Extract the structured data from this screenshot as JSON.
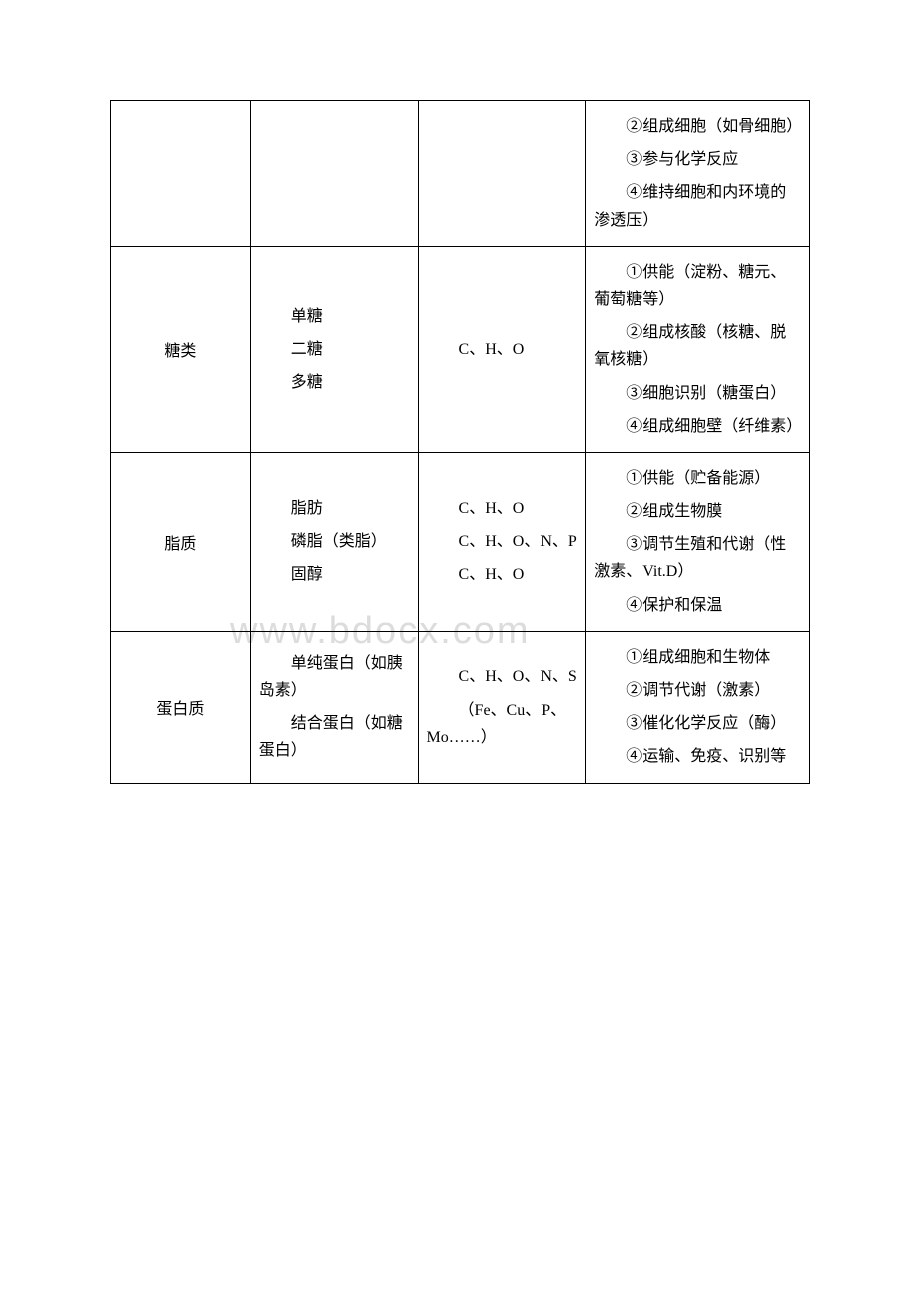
{
  "watermark": "www.bdocx.com",
  "table": {
    "columns": [
      {
        "width": "20%"
      },
      {
        "width": "24%"
      },
      {
        "width": "24%"
      },
      {
        "width": "32%"
      }
    ],
    "border_color": "#000000",
    "font_family": "SimSun",
    "font_size": 16,
    "text_color": "#000000",
    "rows": [
      {
        "col1": "",
        "col2": [],
        "col3": [],
        "col4": [
          "②组成细胞（如骨细胞）",
          "③参与化学反应",
          "④维持细胞和内环境的渗透压）"
        ]
      },
      {
        "col1": "糖类",
        "col2": [
          "单糖",
          "二糖",
          "多糖"
        ],
        "col3": [
          "C、H、O"
        ],
        "col4": [
          "①供能（淀粉、糖元、葡萄糖等）",
          "②组成核酸（核糖、脱氧核糖）",
          "③细胞识别（糖蛋白）",
          "④组成细胞壁（纤维素）"
        ]
      },
      {
        "col1": "脂质",
        "col2": [
          "脂肪",
          "磷脂（类脂）",
          "固醇"
        ],
        "col3": [
          "C、H、O",
          "C、H、O、N、P",
          "C、H、O"
        ],
        "col4": [
          "①供能（贮备能源）",
          "②组成生物膜",
          "③调节生殖和代谢（性激素、Vit.D）",
          "④保护和保温"
        ]
      },
      {
        "col1": "蛋白质",
        "col2": [
          "单纯蛋白（如胰岛素）",
          "结合蛋白（如糖蛋白）"
        ],
        "col3": [
          "C、H、O、N、S",
          "（Fe、Cu、P、Mo……）"
        ],
        "col4": [
          "①组成细胞和生物体",
          "②调节代谢（激素）",
          "③催化化学反应（酶）",
          "④运输、免疫、识别等"
        ]
      }
    ]
  }
}
